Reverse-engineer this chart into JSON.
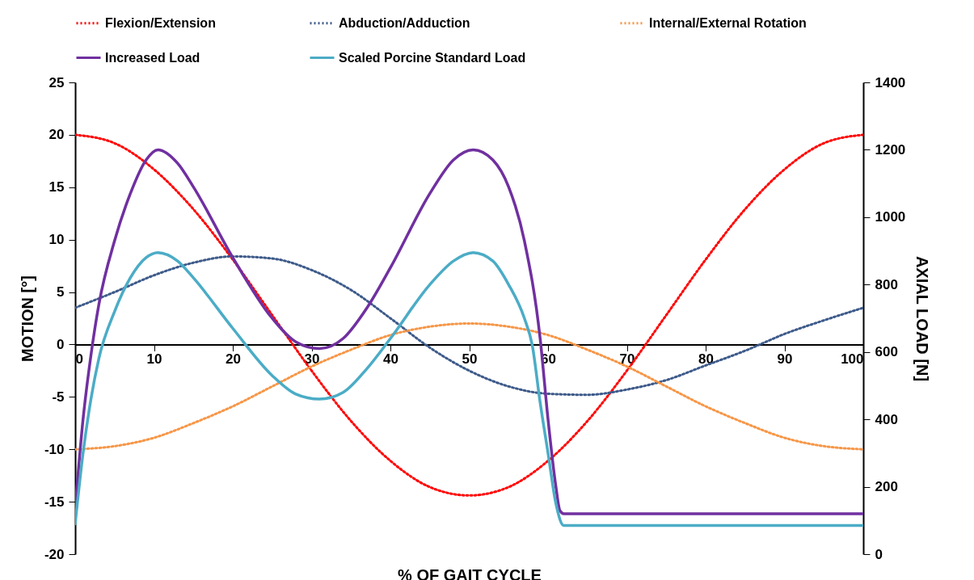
{
  "chart_data": {
    "type": "line",
    "xlabel": "% OF GAIT CYCLE",
    "ylabel": "MOTION [°]",
    "y2label": "AXIAL LOAD [N]",
    "xlim": [
      0,
      100
    ],
    "xticks": [
      0,
      10,
      20,
      30,
      40,
      50,
      60,
      70,
      80,
      90,
      100
    ],
    "ylim": [
      -20,
      25
    ],
    "yticks": [
      -20,
      -15,
      -10,
      -5,
      0,
      5,
      10,
      15,
      20,
      25
    ],
    "y2lim": [
      0,
      1400
    ],
    "y2ticks": [
      0,
      200,
      400,
      600,
      800,
      1000,
      1200,
      1400
    ],
    "legend": "top",
    "series": [
      {
        "name": "Flexion/Extension",
        "color": "#ff0000",
        "line_style": "dotted",
        "x": [
          0,
          5,
          10,
          15,
          20,
          25,
          30,
          35,
          40,
          45,
          50,
          55,
          60,
          65,
          70,
          75,
          80,
          85,
          90,
          95,
          100
        ],
        "values": [
          20,
          19.2,
          16.7,
          12.9,
          8.1,
          2.8,
          -2.5,
          -7.3,
          -11.1,
          -13.6,
          -14.4,
          -13.6,
          -11.1,
          -7.3,
          -2.5,
          2.8,
          8.1,
          12.9,
          16.7,
          19.2,
          20
        ]
      },
      {
        "name": "Abduction/Adduction",
        "color": "#3d5a8a",
        "line_style": "dotted",
        "x": [
          0,
          5,
          10,
          15,
          20,
          25,
          30,
          35,
          40,
          45,
          50,
          55,
          60,
          65,
          70,
          75,
          80,
          85,
          90,
          95,
          100
        ],
        "values": [
          3.5,
          5.0,
          6.6,
          7.8,
          8.4,
          8.2,
          7.1,
          5.2,
          2.5,
          -0.3,
          -2.5,
          -4.0,
          -4.7,
          -4.8,
          -4.3,
          -3.4,
          -2.0,
          -0.6,
          1.0,
          2.3,
          3.5
        ]
      },
      {
        "name": "Internal/External Rotation",
        "color": "#f79646",
        "line_style": "dotted",
        "x": [
          0,
          5,
          10,
          15,
          20,
          25,
          30,
          35,
          40,
          45,
          50,
          55,
          60,
          65,
          70,
          75,
          80,
          85,
          90,
          95,
          100
        ],
        "values": [
          -10,
          -9.7,
          -8.9,
          -7.5,
          -5.9,
          -4,
          -2.1,
          -0.5,
          0.9,
          1.7,
          2,
          1.7,
          0.9,
          -0.5,
          -2.1,
          -4,
          -5.9,
          -7.5,
          -8.9,
          -9.7,
          -10
        ]
      },
      {
        "name": "Increased Load",
        "color": "#7030a0",
        "line_style": "solid",
        "axis": "y2",
        "x": [
          0,
          1,
          2,
          3,
          5,
          7,
          9,
          10.5,
          13,
          15,
          20,
          25,
          28,
          31,
          34,
          37,
          40,
          45,
          48,
          50.5,
          53,
          55,
          57,
          59,
          60,
          61,
          61.5,
          62,
          100
        ],
        "values": [
          135,
          400,
          590,
          740,
          930,
          1070,
          1170,
          1200,
          1160,
          1090,
          880,
          700,
          630,
          610,
          640,
          730,
          850,
          1070,
          1170,
          1200,
          1170,
          1090,
          930,
          640,
          400,
          200,
          130,
          120,
          120
        ]
      },
      {
        "name": "Scaled Porcine Standard Load",
        "color": "#4bacc6",
        "line_style": "solid",
        "axis": "y2",
        "x": [
          0,
          1,
          2,
          3,
          5,
          7,
          9,
          10.5,
          13,
          15,
          20,
          25,
          28,
          31,
          34,
          37,
          40,
          45,
          48,
          50.5,
          53,
          55,
          57,
          58,
          59,
          60,
          61,
          62,
          100
        ],
        "values": [
          90,
          300,
          460,
          580,
          720,
          820,
          880,
          895,
          870,
          820,
          670,
          530,
          475,
          460,
          480,
          550,
          640,
          800,
          870,
          895,
          870,
          800,
          700,
          620,
          450,
          300,
          150,
          85,
          85
        ]
      }
    ]
  }
}
